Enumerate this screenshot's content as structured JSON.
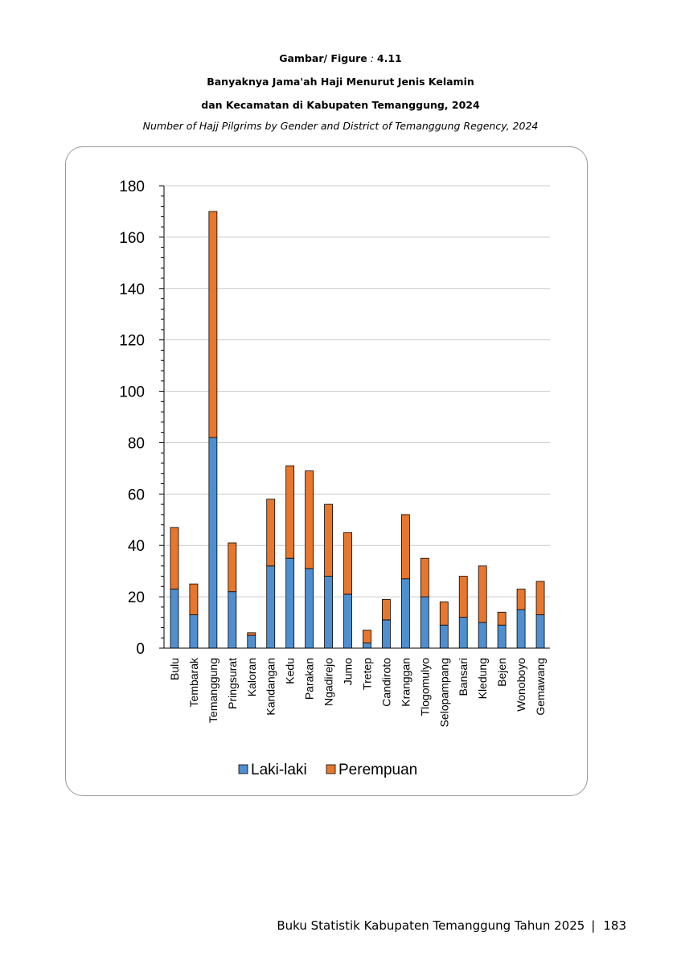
{
  "header": {
    "figure_label": "Gambar/ Figure",
    "figure_sep": " : ",
    "figure_number": "4.11",
    "title_line1": "Banyaknya Jama'ah Haji Menurut Jenis Kelamin",
    "title_line2": "dan Kecamatan di Kabupaten Temanggung, 2024",
    "title_en": "Number of Hajj Pilgrims by Gender and District of Temanggung Regency, 2024"
  },
  "footer": {
    "book_title": "Buku Statistik Kabupaten Temanggung Tahun 2025",
    "separator": "|",
    "page_number": "183"
  },
  "colors": {
    "laki": "#4f8fcf",
    "perempuan": "#e8772e",
    "grid": "#cccccc",
    "axis": "#000000"
  },
  "chart_data": {
    "type": "bar",
    "stacked": true,
    "categories": [
      "Bulu",
      "Tembarak",
      "Temanggung",
      "Pringsurat",
      "Kaloran",
      "Kandangan",
      "Kedu",
      "Parakan",
      "Ngadirejo",
      "Jumo",
      "Tretep",
      "Candiroto",
      "Kranggan",
      "Tlogomulyo",
      "Selopampang",
      "Bansari",
      "Kledung",
      "Bejen",
      "Wonoboyo",
      "Gemawang"
    ],
    "series": [
      {
        "name": "Laki-laki",
        "values": [
          23,
          13,
          82,
          22,
          5,
          32,
          35,
          31,
          28,
          21,
          2,
          11,
          27,
          20,
          9,
          12,
          10,
          9,
          15,
          13
        ]
      },
      {
        "name": "Perempuan",
        "values": [
          24,
          12,
          88,
          19,
          1,
          26,
          36,
          38,
          28,
          24,
          5,
          8,
          25,
          15,
          9,
          16,
          22,
          5,
          8,
          13
        ]
      }
    ],
    "ylim": [
      0,
      180
    ],
    "yticks": [
      "0",
      "20",
      "40",
      "60",
      "80",
      "100",
      "120",
      "140",
      "160",
      "180"
    ],
    "grid": true,
    "legend_position": "bottom"
  }
}
